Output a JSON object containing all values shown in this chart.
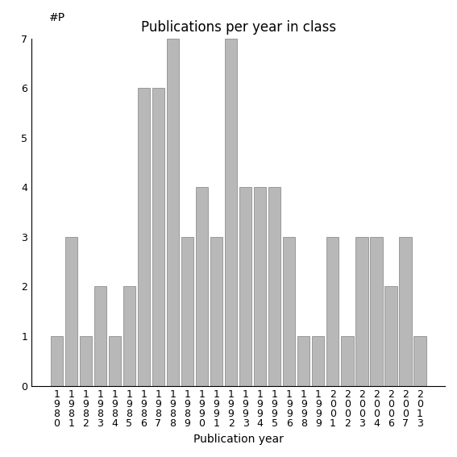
{
  "years": [
    "1980",
    "1981",
    "1982",
    "1983",
    "1984",
    "1985",
    "1986",
    "1987",
    "1988",
    "1989",
    "1990",
    "1991",
    "1992",
    "1993",
    "1994",
    "1995",
    "1996",
    "1998",
    "1999",
    "2001",
    "2002",
    "2003",
    "2004",
    "2006",
    "2007",
    "2013"
  ],
  "values": [
    1,
    3,
    1,
    2,
    1,
    2,
    6,
    6,
    7,
    3,
    4,
    3,
    7,
    4,
    4,
    4,
    3,
    1,
    1,
    3,
    1,
    3,
    3,
    2,
    3,
    1
  ],
  "bar_color": "#b8b8b8",
  "bar_edgecolor": "#808080",
  "title": "Publications per year in class",
  "xlabel": "Publication year",
  "ylabel": "#P",
  "ylim": [
    0,
    7
  ],
  "yticks": [
    0,
    1,
    2,
    3,
    4,
    5,
    6,
    7
  ],
  "background_color": "#ffffff",
  "title_fontsize": 12,
  "label_fontsize": 10,
  "tick_fontsize": 9
}
